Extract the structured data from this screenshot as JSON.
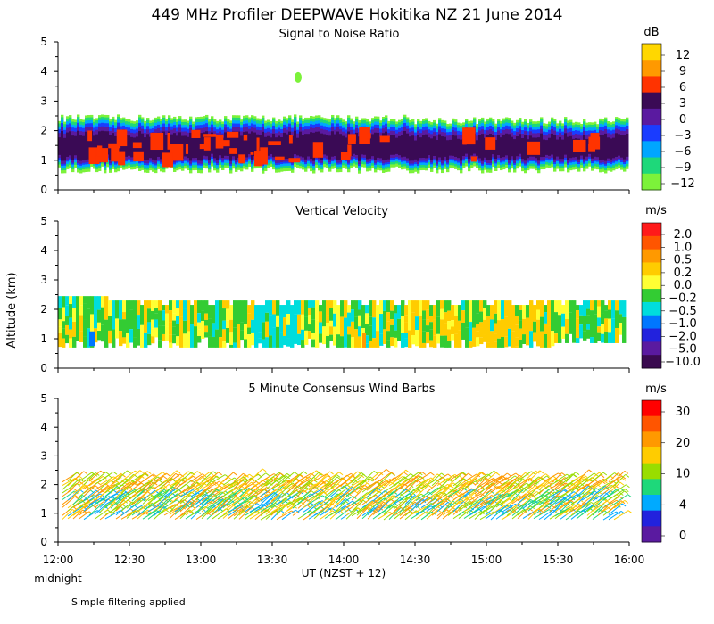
{
  "title": "449 MHz Profiler DEEPWAVE Hokitika NZ 21 June 2014",
  "y_axis_label": "Altitude (km)",
  "x_axis_label": "UT  (NZST + 12)",
  "x_ticks": [
    "12:00",
    "12:30",
    "13:00",
    "13:30",
    "14:00",
    "14:30",
    "15:00",
    "15:30",
    "16:00"
  ],
  "midnight_label": "midnight",
  "footer_note": "Simple filtering applied",
  "chart_data": [
    {
      "type": "heatmap",
      "title": "Signal to Noise Ratio",
      "unit": "dB",
      "xlim": [
        "12:00",
        "16:00"
      ],
      "ylim": [
        0,
        5
      ],
      "y_ticks": [
        "0",
        "1",
        "2",
        "3",
        "4",
        "5"
      ],
      "colorbar_labels": [
        "12",
        "9",
        "6",
        "3",
        "0",
        "−3",
        "−6",
        "−9",
        "−12"
      ],
      "colorbar_colors": [
        "#ffd700",
        "#ff9900",
        "#ff3300",
        "#3a0a55",
        "#5a1aa0",
        "#1a3cff",
        "#00a6ff",
        "#1ed87a",
        "#7cf23a"
      ],
      "echo_layer_km": [
        0.7,
        2.4
      ]
    },
    {
      "type": "heatmap",
      "title": "Vertical Velocity",
      "unit": "m/s",
      "xlim": [
        "12:00",
        "16:00"
      ],
      "ylim": [
        0,
        5
      ],
      "y_ticks": [
        "0",
        "1",
        "2",
        "3",
        "4",
        "5"
      ],
      "colorbar_labels": [
        "2.0",
        "1.0",
        "0.5",
        "0.2",
        "0.0",
        "−0.2",
        "−0.5",
        "−1.0",
        "−2.0",
        "−5.0",
        "−10.0"
      ],
      "colorbar_colors": [
        "#ff1a1a",
        "#ff5500",
        "#ff9900",
        "#ffcc00",
        "#ffff33",
        "#33cc33",
        "#00dddd",
        "#0077ff",
        "#2222dd",
        "#5a1aa0",
        "#3a0a50"
      ],
      "echo_layer_km": [
        0.7,
        2.4
      ]
    },
    {
      "type": "scatter",
      "title": "5 Minute Consensus Wind Barbs",
      "unit": "m/s",
      "xlim": [
        "12:00",
        "16:00"
      ],
      "ylim": [
        0,
        5
      ],
      "y_ticks": [
        "0",
        "1",
        "2",
        "3",
        "4",
        "5"
      ],
      "colorbar_labels": [
        "30",
        "20",
        "10",
        "4",
        "0"
      ],
      "colorbar_colors": [
        "#ff0000",
        "#ff5500",
        "#ff9900",
        "#ffcc00",
        "#99dd00",
        "#1ed87a",
        "#00aaff",
        "#2222dd",
        "#5a1aa0"
      ],
      "barb_layer_km": [
        0.7,
        2.2
      ],
      "barb_speed_range_ms": [
        8,
        22
      ]
    }
  ]
}
